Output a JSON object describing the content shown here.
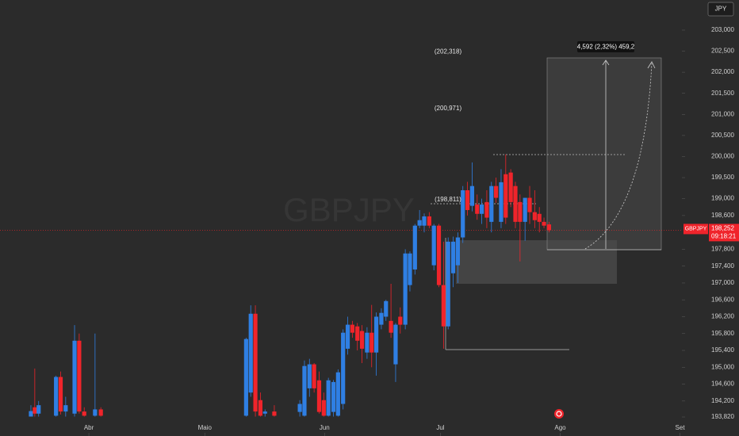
{
  "chart_data": {
    "type": "candlestick",
    "watermark": "GBPJPY",
    "currency": "JPY",
    "symbol": "GBPJPY",
    "countdown": "09:18:21",
    "last_price": {
      "value": 198.252,
      "label": "198,252"
    },
    "measure_label": "4,592 (2,32%) 459,2",
    "annotations": [
      {
        "value": 202.318,
        "label": "(202,318)"
      },
      {
        "value": 200.971,
        "label": "(200,971)"
      },
      {
        "value": 198.811,
        "label": "(198,811)"
      }
    ],
    "up_color": "#2f7fe3",
    "down_color": "#f0242b",
    "xlim": [
      -23,
      153.5
    ],
    "xticks": [
      {
        "value": 0,
        "label": "Abr"
      },
      {
        "value": 30,
        "label": "Maio"
      },
      {
        "value": 61,
        "label": "Jun"
      },
      {
        "value": 91,
        "label": "Jul"
      },
      {
        "value": 122,
        "label": "Ago"
      },
      {
        "value": 153,
        "label": "Set"
      }
    ],
    "ylim": [
      193.369,
      203.714
    ],
    "yticks": [
      {
        "value": 203,
        "label": "203,000"
      },
      {
        "value": 202.5,
        "label": "202,500"
      },
      {
        "value": 202,
        "label": "202,000"
      },
      {
        "value": 201.5,
        "label": "201,500"
      },
      {
        "value": 201,
        "label": "201,000"
      },
      {
        "value": 200.5,
        "label": "200,500"
      },
      {
        "value": 200,
        "label": "200,000"
      },
      {
        "value": 199.5,
        "label": "199,500"
      },
      {
        "value": 199,
        "label": "199,000"
      },
      {
        "value": 198.6,
        "label": "198,600"
      },
      {
        "value": 197.8,
        "label": "197,800"
      },
      {
        "value": 197.4,
        "label": "197,400"
      },
      {
        "value": 197,
        "label": "197,000"
      },
      {
        "value": 196.6,
        "label": "196,600"
      },
      {
        "value": 196.2,
        "label": "196,200"
      },
      {
        "value": 195.8,
        "label": "195,800"
      },
      {
        "value": 195.4,
        "label": "195,400"
      },
      {
        "value": 195,
        "label": "195,000"
      },
      {
        "value": 194.6,
        "label": "194,600"
      },
      {
        "value": 194.2,
        "label": "194,200"
      },
      {
        "value": 193.82,
        "label": "193,820"
      }
    ],
    "x": [
      -15,
      -14,
      -13,
      -8.5,
      -7.3,
      -6,
      -3.7,
      -2.5,
      -1.2,
      1.6,
      3.1,
      40.7,
      41.9,
      43.1,
      44.4,
      45.6,
      48,
      54.6,
      55.8,
      57.1,
      58.3,
      59.6,
      60.8,
      62.0,
      63.3,
      64.5,
      65.8,
      67.0,
      68.2,
      69.5,
      70.7,
      72.0,
      73.2,
      74.4,
      75.7,
      76.9,
      78.2,
      79.4,
      80.6,
      81.9,
      83.1,
      84.4,
      85.6,
      86.8,
      88.1,
      89.3,
      90.6,
      91.8,
      93.0,
      94.3,
      95.5,
      96.8,
      98.0,
      99.2,
      100.5,
      101.7,
      103.0,
      104.2,
      105.4,
      106.7,
      107.9,
      109.2,
      110.4,
      111.6,
      112.9,
      114.1,
      115.4,
      116.6,
      117.8,
      119.1
    ],
    "open": [
      193.83,
      194.05,
      193.9,
      193.85,
      194.77,
      193.95,
      193.9,
      195.63,
      193.95,
      193.85,
      194.0,
      193.85,
      194.4,
      196.27,
      194.22,
      193.9,
      193.95,
      193.94,
      193.85,
      194.5,
      195.07,
      194.69,
      194.22,
      193.85,
      193.94,
      193.85,
      194.13,
      195.44,
      196.01,
      195.97,
      195.86,
      195.35,
      195.82,
      195.35,
      196.01,
      196.2,
      196.1,
      195.07,
      196.2,
      196.01,
      196.95,
      197.32,
      198.36,
      198.36,
      198.58,
      197.42,
      198.36,
      196.95,
      195.97,
      197.23,
      197.42,
      198.08,
      199.2,
      198.83,
      198.86,
      198.64,
      198.92,
      198.45,
      199.3,
      198.45,
      199.58,
      199.62,
      199.3,
      198.92,
      198.45,
      199.02,
      198.68,
      198.64,
      198.45,
      198.39
    ],
    "high": [
      194.1,
      194.97,
      194.2,
      194.8,
      194.9,
      194.3,
      196.0,
      195.8,
      194.05,
      195.8,
      194.05,
      195.7,
      196.47,
      196.47,
      194.4,
      194.0,
      194.1,
      194.22,
      195.16,
      195.2,
      195.1,
      194.9,
      194.4,
      194.75,
      194.7,
      194.95,
      195.9,
      196.2,
      196.1,
      196.05,
      196.0,
      195.95,
      196.48,
      196.3,
      196.4,
      196.6,
      196.98,
      196.05,
      196.42,
      197.8,
      197.75,
      198.4,
      198.73,
      198.65,
      198.68,
      198.4,
      198.4,
      197.98,
      198.08,
      198.1,
      198.2,
      199.3,
      199.4,
      199.86,
      199.1,
      199.0,
      199.2,
      199.4,
      199.5,
      199.7,
      200.05,
      199.7,
      199.4,
      199.1,
      199.0,
      199.3,
      199.2,
      198.8,
      198.55,
      198.45
    ],
    "low": [
      193.83,
      193.83,
      193.83,
      193.83,
      193.88,
      193.83,
      193.83,
      193.9,
      193.83,
      193.83,
      193.83,
      193.83,
      194.3,
      193.83,
      193.83,
      193.83,
      193.83,
      193.83,
      193.83,
      194.3,
      194.4,
      193.9,
      193.83,
      193.83,
      193.83,
      193.83,
      194.0,
      195.3,
      195.7,
      195.4,
      195.1,
      195.2,
      195.0,
      194.8,
      195.9,
      196.1,
      195.7,
      194.65,
      195.8,
      195.9,
      196.8,
      197.2,
      198.3,
      198.2,
      198.3,
      197.3,
      196.9,
      195.44,
      195.9,
      196.9,
      197.0,
      197.95,
      198.6,
      198.7,
      198.5,
      198.4,
      198.3,
      198.2,
      198.9,
      198.3,
      198.4,
      198.8,
      198.3,
      197.51,
      198.0,
      198.4,
      198.3,
      198.2,
      198.3,
      198.2
    ],
    "close": [
      193.96,
      193.9,
      194.1,
      194.77,
      193.95,
      194.1,
      195.63,
      193.95,
      193.85,
      194.0,
      193.85,
      195.67,
      196.27,
      193.95,
      193.85,
      193.95,
      193.85,
      194.13,
      195.03,
      195.07,
      194.5,
      193.94,
      193.85,
      194.69,
      194.65,
      194.88,
      195.82,
      196.01,
      195.82,
      195.63,
      195.44,
      195.82,
      195.35,
      196.2,
      196.29,
      196.57,
      195.82,
      196.01,
      196.01,
      197.7,
      197.7,
      198.36,
      198.49,
      198.58,
      198.36,
      198.36,
      196.95,
      195.97,
      197.98,
      197.98,
      198.08,
      199.2,
      198.73,
      199.3,
      198.64,
      198.86,
      198.55,
      199.3,
      199.02,
      199.39,
      198.55,
      198.92,
      198.45,
      198.45,
      199.02,
      198.68,
      198.49,
      198.45,
      198.36,
      198.252
    ]
  }
}
